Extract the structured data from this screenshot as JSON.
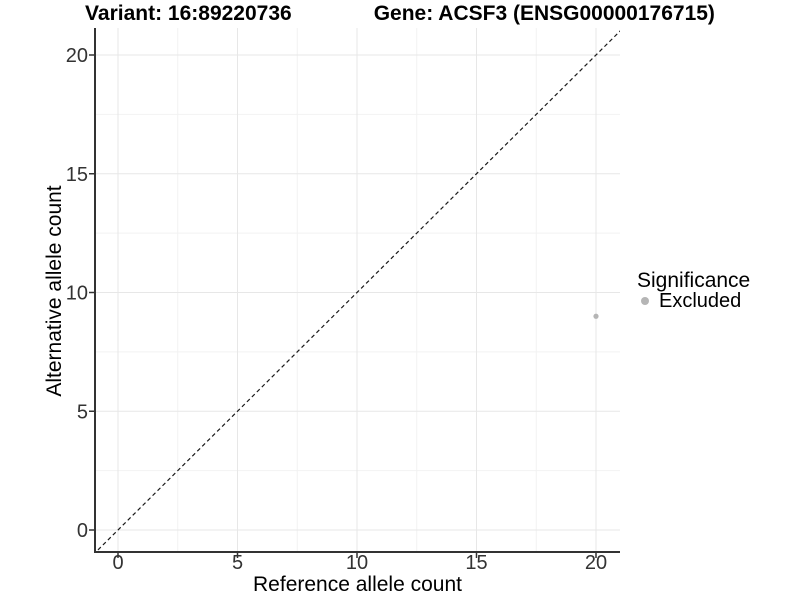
{
  "titles": {
    "variant": "Variant: 16:89220736",
    "gene": "Gene: ACSF3 (ENSG00000176715)"
  },
  "axes": {
    "x": {
      "label": "Reference allele count"
    },
    "y": {
      "label": "Alternative allele count"
    }
  },
  "legend": {
    "title": "Significance",
    "items": [
      {
        "label": "Excluded",
        "color": "#b5b5b5"
      }
    ]
  },
  "chart_data": {
    "type": "scatter",
    "title": "Variant: 16:89220736   Gene: ACSF3 (ENSG00000176715)",
    "xlabel": "Reference allele count",
    "ylabel": "Alternative allele count",
    "xlim": [
      -1,
      21
    ],
    "ylim": [
      -1,
      21
    ],
    "x_ticks": [
      0,
      5,
      10,
      15,
      20
    ],
    "y_ticks": [
      0,
      5,
      10,
      15,
      20
    ],
    "x_minor_ticks": [
      2.5,
      7.5,
      12.5,
      17.5
    ],
    "y_minor_ticks": [
      2.5,
      7.5,
      12.5,
      17.5
    ],
    "grid": true,
    "legend_position": "right",
    "series": [
      {
        "name": "Excluded",
        "color": "#b5b5b5",
        "points": [
          {
            "x": 20,
            "y": 9
          }
        ]
      }
    ],
    "reference_line": {
      "type": "identity",
      "slope": 1,
      "intercept": 0,
      "style": "dashed",
      "color": "#1a1a1a"
    },
    "colors": {
      "background": "#ffffff",
      "grid_major": "#e7e7e7",
      "grid_minor": "#f2f2f2",
      "axis_line": "#333333",
      "tick_mark": "#333333",
      "tick_label": "#333333"
    }
  }
}
